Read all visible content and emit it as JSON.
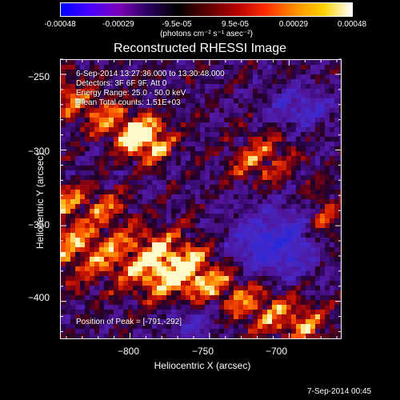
{
  "colorbar": {
    "gradient_colors": [
      "#0000ff",
      "#4a00ff",
      "#7a00b8",
      "#2a0060",
      "#000000",
      "#5a0000",
      "#b00000",
      "#ff2a00",
      "#ff8a00",
      "#ffd000",
      "#ffffff"
    ],
    "tick_labels": [
      "-0.00048",
      "-0.00029",
      "-9.5e-05",
      "9.5e-05",
      "0.00029",
      "0.00048"
    ],
    "units": "(photons cm⁻² s⁻¹ asec⁻²)"
  },
  "plot": {
    "title": "Reconstructed RHESSI Image",
    "info_lines": [
      "6-Sep-2014 13:27:36.000 to 13:30:48.000",
      "Detectors: 3F 6F 9F, Att 0",
      "Energy Range: 25.0 - 50.0 keV",
      "Clean     Total counts: 1.51E+03"
    ],
    "peak_text": "Position of Peak = [-791,-292]"
  },
  "chart_data": {
    "type": "heatmap",
    "title": "Reconstructed RHESSI Image",
    "xlabel": "Heliocentric X (arcsec)",
    "ylabel": "Heliocentric Y (arcsec)",
    "xlim": [
      -844,
      -667
    ],
    "ylim": [
      -425,
      -240
    ],
    "x_ticks": [
      -800,
      -750,
      -700
    ],
    "y_ticks": [
      -250,
      -300,
      -350,
      -400
    ],
    "x_tick_labels": [
      "−800",
      "−750",
      "−700"
    ],
    "y_tick_labels": [
      "−250",
      "−300",
      "−350",
      "−400"
    ],
    "colorbar_range": [
      -0.00048,
      0.00048
    ],
    "peak_position": [
      -791,
      -292
    ],
    "grid": false
  },
  "footer": {
    "date": "7-Sep-2014 00:45"
  }
}
